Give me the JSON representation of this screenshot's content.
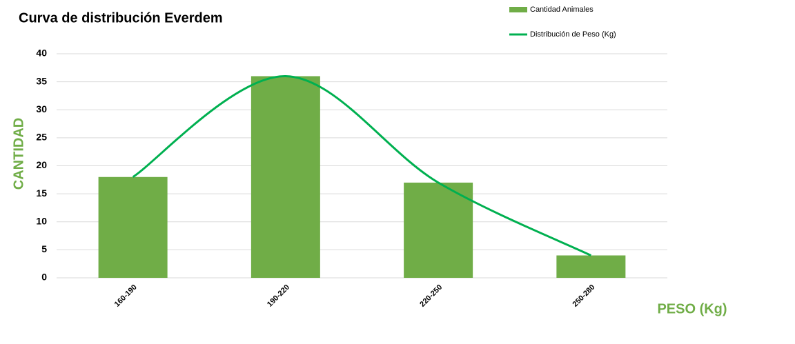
{
  "chart_data": {
    "type": "combo",
    "title": "Curva de distribución Everdem",
    "x_label": "PESO (Kg)",
    "y_label": "CANTIDAD",
    "categories": [
      "160-190",
      "190-220",
      "220-250",
      "250-280"
    ],
    "series": [
      {
        "name": "Cantidad Animales",
        "type": "bar",
        "color": "#70ad47",
        "values": [
          18,
          36,
          17,
          4
        ]
      },
      {
        "name": "Distribución de Peso (Kg)",
        "type": "line",
        "smooth": true,
        "color": "#00b050",
        "values": [
          18,
          36,
          17,
          4
        ]
      }
    ],
    "ylim": [
      0,
      40
    ],
    "yticks": [
      0,
      5,
      10,
      15,
      20,
      25,
      30,
      35,
      40
    ],
    "grid": true,
    "legend": "top-right"
  }
}
